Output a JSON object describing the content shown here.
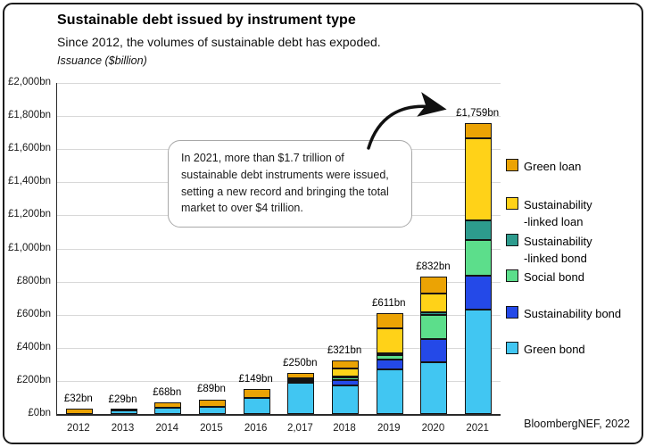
{
  "header": {
    "title": "Sustainable debt issued by instrument type",
    "subtitle": "Since 2012, the volumes of sustainable debt has expoded.",
    "axis_note": "Issuance ($billion)"
  },
  "annotation": {
    "text": "In 2021, more than $1.7 trillion of sustainable debt instruments were issued, setting a new record and bringing the total market to over $4 trillion."
  },
  "source": "BloombergNEF, 2022",
  "chart_data": {
    "type": "bar",
    "stacked": true,
    "grid": true,
    "ylim": [
      0,
      2000
    ],
    "ylabel": "Issuance ($billion)",
    "categories": [
      "2012",
      "2013",
      "2014",
      "2015",
      "2016",
      "2,017",
      "2018",
      "2019",
      "2020",
      "2021"
    ],
    "totals": [
      32,
      29,
      68,
      89,
      149,
      250,
      321,
      611,
      832,
      1759
    ],
    "total_labels": [
      "£32bn",
      "£29bn",
      "£68bn",
      "£89bn",
      "£149bn",
      "£250bn",
      "£321bn",
      "£611bn",
      "£832bn",
      "£1,759bn"
    ],
    "series": [
      {
        "name": "Green bond",
        "color": "#41C6F2",
        "values": [
          0,
          23,
          39,
          45,
          99,
          187,
          170,
          270,
          313,
          629
        ]
      },
      {
        "name": "Sustainability bond",
        "color": "#2449E8",
        "values": [
          0,
          0,
          0,
          0,
          0,
          11,
          37,
          61,
          140,
          207
        ]
      },
      {
        "name": "Social bond",
        "color": "#5CDE8B",
        "values": [
          0,
          0,
          0,
          0,
          0,
          9,
          15,
          24,
          148,
          214
        ]
      },
      {
        "name": "Sustainability-linked bond",
        "color": "#2D9B8D",
        "values": [
          0,
          0,
          0,
          0,
          0,
          0,
          3,
          14,
          16,
          122
        ]
      },
      {
        "name": "Sustainability-linked loan",
        "color": "#FFD218",
        "values": [
          0,
          0,
          0,
          0,
          0,
          11,
          48,
          148,
          113,
          494
        ]
      },
      {
        "name": "Green loan",
        "color": "#EBA304",
        "values": [
          32,
          6,
          29,
          44,
          50,
          32,
          48,
          94,
          102,
          93
        ]
      }
    ],
    "y_ticks": [
      {
        "value": 0,
        "label": "£0bn"
      },
      {
        "value": 200,
        "label": "£200bn"
      },
      {
        "value": 400,
        "label": "£400bn"
      },
      {
        "value": 600,
        "label": "£600bn"
      },
      {
        "value": 800,
        "label": "£800bn"
      },
      {
        "value": 1000,
        "label": "£1,000bn"
      },
      {
        "value": 1200,
        "label": "£1,200bn"
      },
      {
        "value": 1400,
        "label": "£1,400bn"
      },
      {
        "value": 1600,
        "label": "£1,600bn"
      },
      {
        "value": 1800,
        "label": "£1,800bn"
      },
      {
        "value": 2000,
        "label": "£2,000bn"
      }
    ],
    "legend": {
      "position": "right",
      "items": [
        {
          "lines": [
            "Green loan"
          ],
          "color": "#EBA304",
          "top": 177
        },
        {
          "lines": [
            "Sustainability",
            "-linked loan"
          ],
          "color": "#FFD218",
          "top": 220
        },
        {
          "lines": [
            "Sustainability",
            "-linked bond"
          ],
          "color": "#2D9B8D",
          "top": 261
        },
        {
          "lines": [
            "Social bond"
          ],
          "color": "#5CDE8B",
          "top": 301
        },
        {
          "lines": [
            "Sustainability bond"
          ],
          "color": "#2449E8",
          "top": 342
        },
        {
          "lines": [
            "Green bond"
          ],
          "color": "#41C6F2",
          "top": 382
        }
      ]
    }
  }
}
